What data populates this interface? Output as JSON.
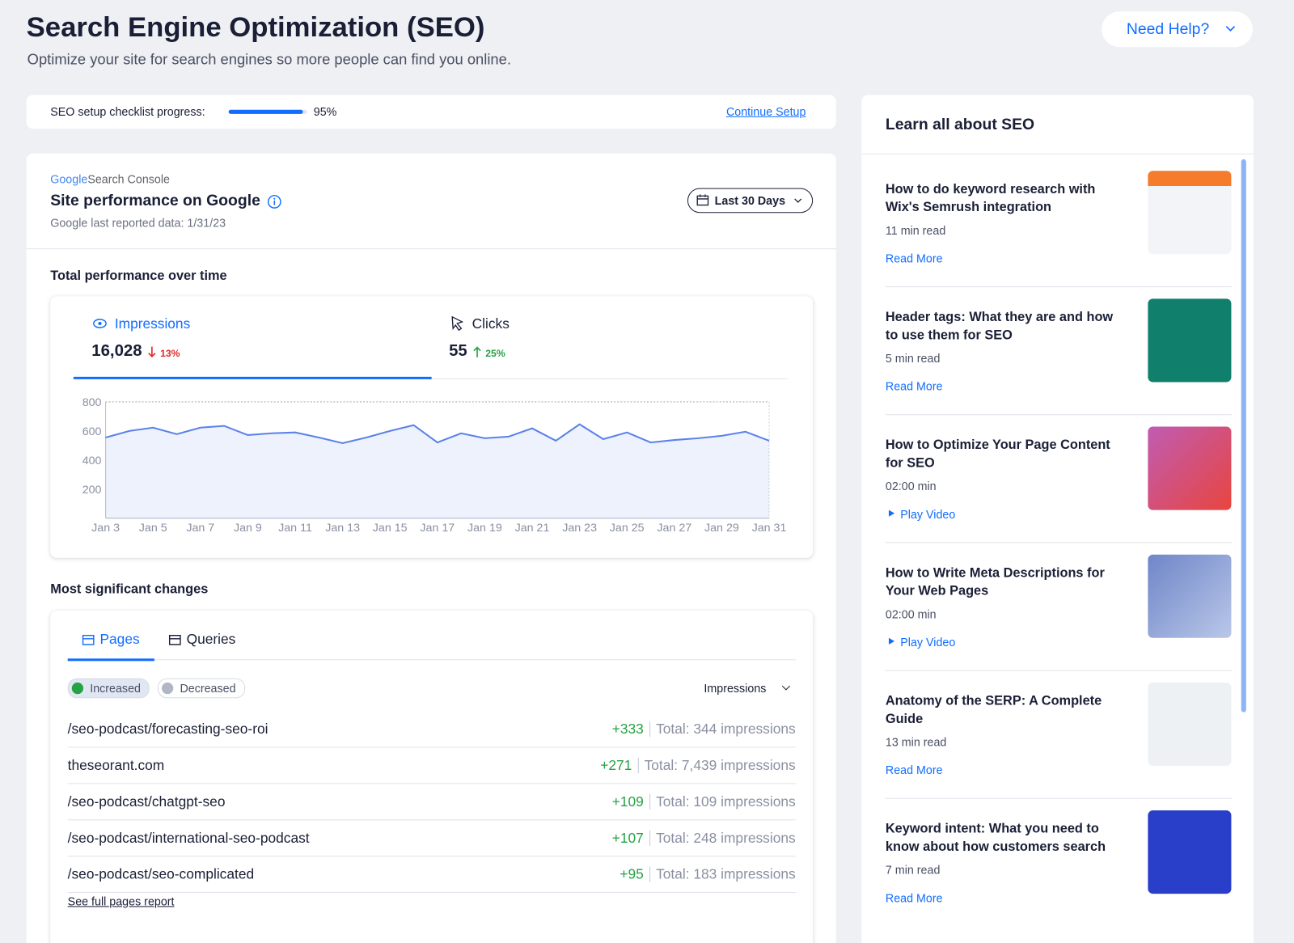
{
  "header": {
    "title": "Search Engine Optimization (SEO)",
    "subtitle": "Optimize your site for search engines so more people can find you online.",
    "help": "Need Help?"
  },
  "checklist": {
    "label": "SEO setup checklist progress:",
    "progress": 95,
    "progress_label": "95%",
    "link": "Continue Setup"
  },
  "performance": {
    "logo": "Google",
    "logo_suffix": "Search Console",
    "title": "Site performance on Google",
    "reported": "Google last reported data: 1/31/23",
    "range": "Last 30 Days",
    "section": "Total performance over time"
  },
  "metrics": [
    {
      "label": "Impressions",
      "value": "16,028",
      "change": "13%"
    },
    {
      "label": "Clicks",
      "value": "55",
      "change": "25%"
    }
  ],
  "chart_data": {
    "type": "line",
    "categories": [
      "Jan 3",
      null,
      "Jan 5",
      null,
      "Jan 7",
      null,
      "Jan 9",
      null,
      "Jan 11",
      null,
      "Jan 13",
      null,
      "Jan 15",
      null,
      "Jan 17",
      null,
      "Jan 19",
      null,
      "Jan 21",
      null,
      "Jan 23",
      null,
      "Jan 25",
      null,
      "Jan 27",
      null,
      "Jan 29",
      null,
      "Jan 31"
    ],
    "values": [
      555,
      600,
      623,
      578,
      623,
      635,
      572,
      584,
      590,
      555,
      516,
      555,
      600,
      640,
      521,
      584,
      550,
      561,
      618,
      533,
      646,
      544,
      590,
      521,
      538,
      550,
      567,
      595,
      533
    ],
    "color": "#5b82e8",
    "ylim": [
      0,
      800
    ],
    "yticks": [
      200,
      400,
      600,
      800
    ]
  },
  "changes": {
    "title": "Most significant changes",
    "tabs": [
      "Pages",
      "Queries"
    ],
    "filters": [
      "Increased",
      "Decreased"
    ],
    "sort": "Impressions",
    "rows": [
      {
        "path": "/seo-podcast/forecasting-seo-roi",
        "delta": "+333",
        "total": "Total: 344 impressions"
      },
      {
        "path": "theseorant.com",
        "delta": "+271",
        "total": "Total: 7,439 impressions"
      },
      {
        "path": "/seo-podcast/chatgpt-seo",
        "delta": "+109",
        "total": "Total: 109 impressions"
      },
      {
        "path": "/seo-podcast/international-seo-podcast",
        "delta": "+107",
        "total": "Total: 248 impressions"
      },
      {
        "path": "/seo-podcast/seo-complicated",
        "delta": "+95",
        "total": "Total: 183 impressions"
      }
    ],
    "link": "See full pages report"
  },
  "learn": {
    "title": "Learn all about SEO",
    "articles": [
      {
        "title": "How to do keyword research with Wix's Semrush integration",
        "meta": "11 min read",
        "action": "Read More"
      },
      {
        "title": "Header tags: What they are and how to use them for SEO",
        "meta": "5 min read",
        "action": "Read More"
      },
      {
        "title": "How to Optimize Your Page Content for SEO",
        "meta": "02:00 min",
        "action": "Play Video"
      },
      {
        "title": "How to Write Meta Descriptions for Your Web Pages",
        "meta": "02:00 min",
        "action": "Play Video"
      },
      {
        "title": "Anatomy of the SERP: A Complete Guide",
        "meta": "13 min read",
        "action": "Read More"
      },
      {
        "title": "Keyword intent: What you need to know about how customers search",
        "meta": "7 min read",
        "action": "Read More"
      }
    ]
  }
}
